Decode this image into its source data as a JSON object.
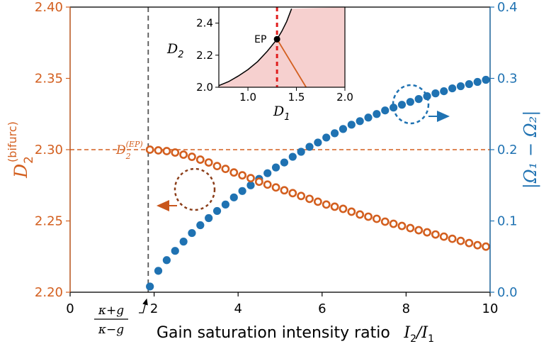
{
  "colors": {
    "left": "#d35f1f",
    "right": "#1f72b2",
    "inset_fill": "#f6d0cf",
    "ep_line": "#e01e1e",
    "threshold_line": "#555555"
  },
  "chart_data": {
    "type": "scatter",
    "xlabel_text": "Gain saturation intensity ratio",
    "xlabel_math_I2": "I",
    "xlabel_math_sub2": "2",
    "xlabel_math_I1": "I",
    "xlabel_math_sub1": "1",
    "xlim": [
      0,
      10
    ],
    "x_ticks": [
      0,
      2,
      4,
      6,
      8,
      10
    ],
    "left_axis": {
      "label_main": "D",
      "label_sub": "2",
      "label_sup": "(bifurc)",
      "ylim": [
        2.2,
        2.4
      ],
      "ticks": [
        "2.20",
        "2.25",
        "2.30",
        "2.35",
        "2.40"
      ]
    },
    "right_axis": {
      "label": "|Ω₁ − Ω₂|",
      "ylim": [
        0.0,
        0.4
      ],
      "ticks": [
        "0.0",
        "0.1",
        "0.2",
        "0.3",
        "0.4"
      ]
    },
    "threshold": {
      "x": 1.86,
      "label_num": "κ+g",
      "label_den": "κ−g"
    },
    "ep_reference": {
      "y": 2.3,
      "label_main": "D",
      "label_sub": "2",
      "label_sup": "(EP)"
    },
    "series": [
      {
        "name": "D2 bifurcation",
        "axis": "left",
        "marker": "open-circle",
        "x": [
          1.9,
          2.1,
          2.3,
          2.5,
          2.7,
          2.9,
          3.1,
          3.3,
          3.5,
          3.7,
          3.9,
          4.1,
          4.3,
          4.5,
          4.7,
          4.9,
          5.1,
          5.3,
          5.5,
          5.7,
          5.9,
          6.1,
          6.3,
          6.5,
          6.7,
          6.9,
          7.1,
          7.3,
          7.5,
          7.7,
          7.9,
          8.1,
          8.3,
          8.5,
          8.7,
          8.9,
          9.1,
          9.3,
          9.5,
          9.7,
          9.9
        ],
        "y": [
          2.3,
          2.2995,
          2.299,
          2.298,
          2.2965,
          2.295,
          2.293,
          2.291,
          2.2885,
          2.2865,
          2.284,
          2.282,
          2.28,
          2.2775,
          2.2755,
          2.2735,
          2.2715,
          2.2695,
          2.2675,
          2.2655,
          2.2635,
          2.2615,
          2.26,
          2.2585,
          2.2565,
          2.2545,
          2.253,
          2.2515,
          2.2495,
          2.248,
          2.2465,
          2.245,
          2.2435,
          2.242,
          2.2405,
          2.239,
          2.2375,
          2.236,
          2.2345,
          2.233,
          2.232
        ]
      },
      {
        "name": "|Ω1 − Ω2|",
        "axis": "right",
        "marker": "filled-circle",
        "x": [
          1.9,
          2.1,
          2.3,
          2.5,
          2.7,
          2.9,
          3.1,
          3.3,
          3.5,
          3.7,
          3.9,
          4.1,
          4.3,
          4.5,
          4.7,
          4.9,
          5.1,
          5.3,
          5.5,
          5.7,
          5.9,
          6.1,
          6.3,
          6.5,
          6.7,
          6.9,
          7.1,
          7.3,
          7.5,
          7.7,
          7.9,
          8.1,
          8.3,
          8.5,
          8.7,
          8.9,
          9.1,
          9.3,
          9.5,
          9.7,
          9.9
        ],
        "y": [
          0.008,
          0.03,
          0.045,
          0.058,
          0.071,
          0.083,
          0.094,
          0.104,
          0.114,
          0.123,
          0.133,
          0.142,
          0.15,
          0.159,
          0.167,
          0.175,
          0.182,
          0.19,
          0.197,
          0.204,
          0.21,
          0.217,
          0.223,
          0.229,
          0.235,
          0.24,
          0.245,
          0.25,
          0.255,
          0.259,
          0.263,
          0.267,
          0.271,
          0.275,
          0.279,
          0.282,
          0.286,
          0.289,
          0.292,
          0.295,
          0.298
        ]
      }
    ],
    "inset": {
      "xlabel_main": "D",
      "xlabel_sub": "1",
      "ylabel_main": "D",
      "ylabel_sub": "2",
      "xlim": [
        0.7,
        2.0
      ],
      "ylim": [
        2.0,
        2.5
      ],
      "x_ticks": [
        "1.0",
        "1.5",
        "2.0"
      ],
      "y_ticks": [
        "2.0",
        "2.2",
        "2.4"
      ],
      "ep_label": "EP",
      "ep_point": {
        "x": 1.3,
        "y": 2.3
      },
      "boundary_curve": {
        "x": [
          0.7,
          0.8,
          0.9,
          1.0,
          1.1,
          1.2,
          1.3,
          1.35,
          1.4,
          1.45
        ],
        "y": [
          2.01,
          2.035,
          2.07,
          2.11,
          2.16,
          2.225,
          2.3,
          2.35,
          2.41,
          2.49
        ]
      },
      "branch_line": {
        "x": [
          1.3,
          1.6
        ],
        "y": [
          2.3,
          2.0
        ]
      }
    }
  }
}
